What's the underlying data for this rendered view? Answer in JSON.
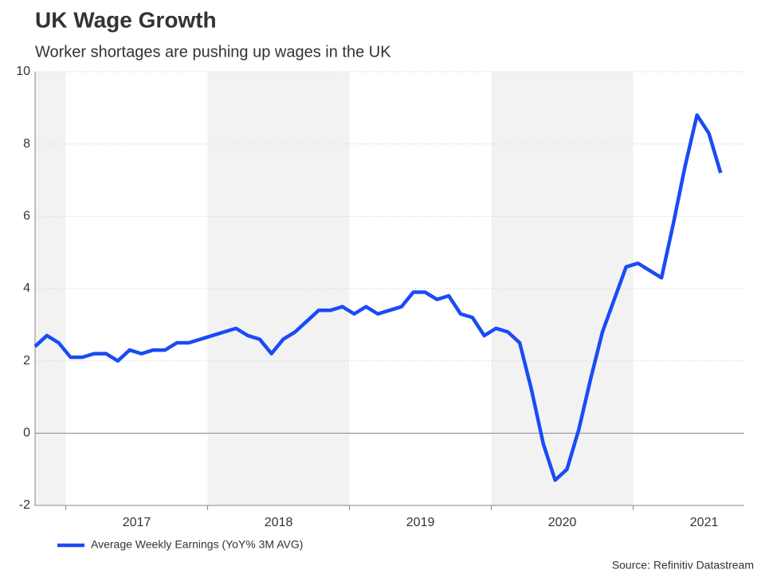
{
  "chart_data": {
    "type": "line",
    "title": "UK Wage Growth",
    "subtitle": "Worker shortages are pushing up wages in the UK",
    "source": "Source: Refinitiv Datastream",
    "x": [
      0,
      1,
      2,
      3,
      4,
      5,
      6,
      7,
      8,
      9,
      10,
      11,
      12,
      13,
      14,
      15,
      16,
      17,
      18,
      19,
      20,
      21,
      22,
      23,
      24,
      25,
      26,
      27,
      28,
      29,
      30,
      31,
      32,
      33,
      34,
      35,
      36,
      37,
      38,
      39,
      40,
      41,
      42,
      43,
      44,
      45,
      46,
      47,
      48,
      49,
      50,
      51,
      52,
      53,
      54,
      55,
      56,
      57,
      58
    ],
    "series": [
      {
        "name": "Average Weekly Earnings (YoY% 3M AVG)",
        "color": "#1a4bf5",
        "values": [
          2.4,
          2.7,
          2.5,
          2.1,
          2.1,
          2.2,
          2.2,
          2.0,
          2.3,
          2.2,
          2.3,
          2.3,
          2.5,
          2.5,
          2.6,
          2.7,
          2.8,
          2.9,
          2.7,
          2.6,
          2.2,
          2.6,
          2.8,
          3.1,
          3.4,
          3.4,
          3.5,
          3.3,
          3.5,
          3.3,
          3.4,
          3.5,
          3.9,
          3.9,
          3.7,
          3.8,
          3.3,
          3.2,
          2.7,
          2.9,
          2.8,
          2.5,
          1.2,
          -0.3,
          -1.3,
          -1.0,
          0.1,
          1.5,
          2.8,
          3.7,
          4.6,
          4.7,
          4.5,
          4.3,
          5.8,
          7.4,
          8.8,
          8.3,
          7.2
        ]
      }
    ],
    "xlim": [
      0,
      60
    ],
    "xticks": [
      {
        "value": 2.6,
        "label": "2017"
      },
      {
        "value": 14.6,
        "label": "2018"
      },
      {
        "value": 26.6,
        "label": "2019"
      },
      {
        "value": 38.6,
        "label": "2020"
      },
      {
        "value": 50.6,
        "label": "2021"
      }
    ],
    "ylim": [
      -2,
      10
    ],
    "yticks": [
      -2,
      0,
      2,
      4,
      6,
      8,
      10
    ],
    "grid": true,
    "alternate_shading": true,
    "legend": "bottom-left"
  }
}
